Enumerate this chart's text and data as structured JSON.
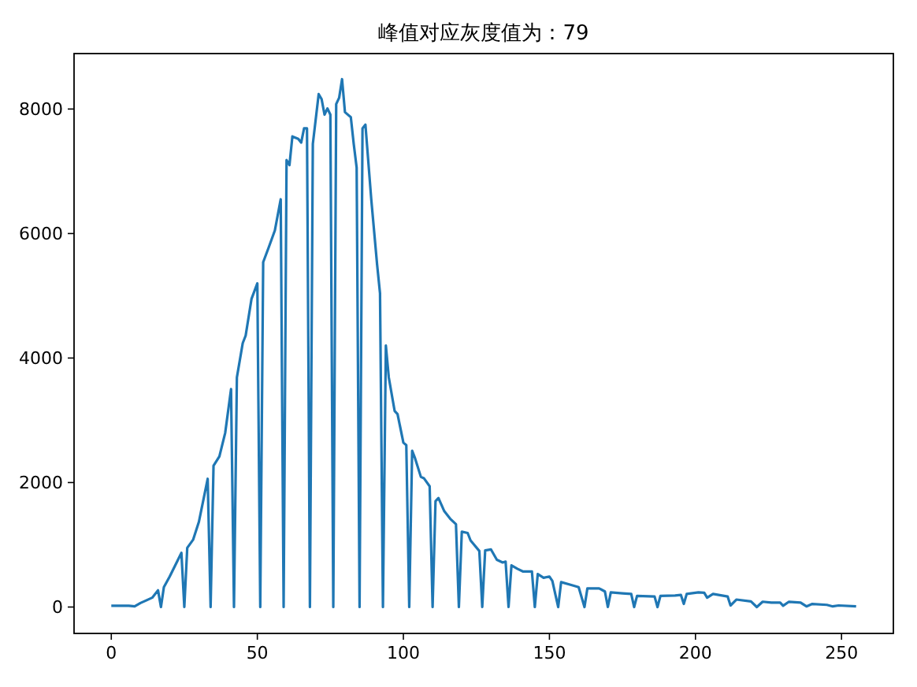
{
  "chart_data": {
    "type": "line",
    "title": "峰值对应灰度值为：79",
    "color": "#1f77b4",
    "x": [
      0,
      3,
      6,
      8,
      10,
      14,
      16,
      17,
      18,
      20,
      24,
      25,
      26,
      28,
      30,
      32,
      33,
      34,
      35,
      37,
      39,
      41,
      42,
      43,
      45,
      46,
      48,
      50,
      51,
      52,
      54,
      56,
      58,
      59,
      60,
      61,
      62,
      64,
      65,
      66,
      67,
      68,
      69,
      71,
      72,
      73,
      74,
      75,
      76,
      77,
      78,
      79,
      80,
      82,
      83,
      84,
      85,
      86,
      87,
      89,
      91,
      92,
      93,
      94,
      95,
      97,
      98,
      100,
      101,
      102,
      103,
      104,
      106,
      107,
      109,
      110,
      111,
      112,
      114,
      116,
      118,
      119,
      120,
      122,
      123,
      126,
      127,
      128,
      130,
      132,
      134,
      135,
      136,
      137,
      139,
      141,
      144,
      145,
      146,
      148,
      150,
      151,
      153,
      154,
      157,
      160,
      162,
      163,
      167,
      169,
      170,
      171,
      175,
      178,
      179,
      180,
      186,
      187,
      188,
      193,
      195,
      196,
      197,
      201,
      203,
      204,
      206,
      211,
      212,
      214,
      219,
      221,
      223,
      226,
      229,
      230,
      232,
      236,
      238,
      240,
      245,
      247,
      249,
      255
    ],
    "values": [
      20,
      20,
      20,
      10,
      65,
      150,
      270,
      0,
      320,
      490,
      870,
      0,
      950,
      1080,
      1370,
      1830,
      2060,
      0,
      2270,
      2420,
      2800,
      3500,
      0,
      3690,
      4240,
      4360,
      4950,
      5200,
      0,
      5540,
      5790,
      6050,
      6550,
      0,
      7180,
      7100,
      7560,
      7520,
      7460,
      7690,
      7690,
      0,
      7440,
      8240,
      8160,
      7910,
      8010,
      7910,
      0,
      8080,
      8180,
      8480,
      7950,
      7870,
      7440,
      7060,
      0,
      7690,
      7750,
      6550,
      5500,
      5040,
      0,
      4200,
      3690,
      3150,
      3100,
      2640,
      2600,
      0,
      2510,
      2390,
      2090,
      2070,
      1940,
      0,
      1700,
      1750,
      1540,
      1420,
      1330,
      0,
      1210,
      1190,
      1070,
      900,
      0,
      910,
      925,
      760,
      715,
      730,
      0,
      670,
      615,
      570,
      570,
      0,
      530,
      470,
      490,
      420,
      0,
      400,
      360,
      320,
      0,
      300,
      300,
      250,
      0,
      235,
      220,
      210,
      0,
      180,
      170,
      0,
      180,
      185,
      195,
      50,
      210,
      235,
      230,
      150,
      210,
      170,
      25,
      120,
      90,
      0,
      85,
      70,
      70,
      20,
      85,
      70,
      10,
      50,
      35,
      10,
      25,
      10
    ],
    "xlim": [
      -12.75,
      267.75
    ],
    "ylim": [
      -424,
      8891
    ],
    "xticks": [
      0,
      50,
      100,
      150,
      200,
      250
    ],
    "yticks": [
      0,
      2000,
      4000,
      6000,
      8000
    ],
    "grid": false
  }
}
